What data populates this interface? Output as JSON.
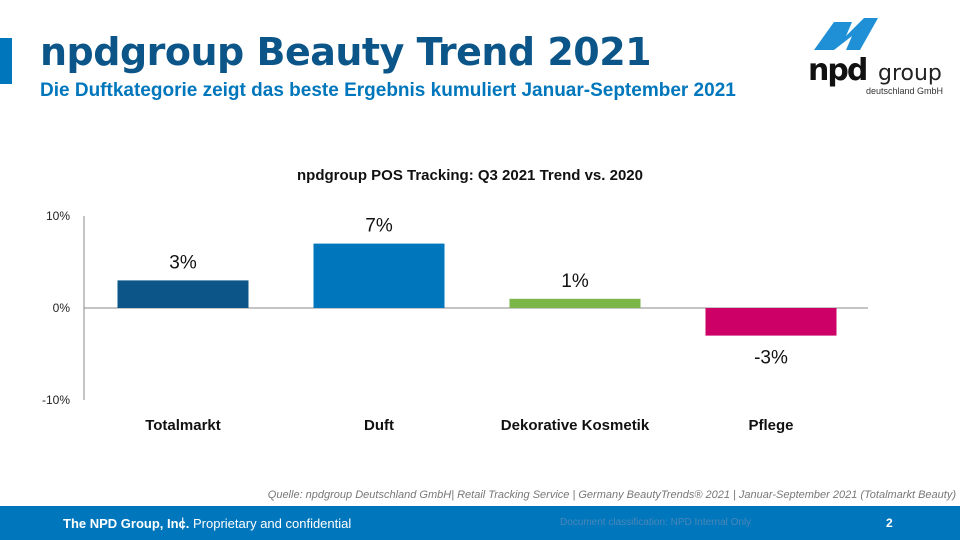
{
  "header": {
    "title": "npdgroup Beauty Trend 2021",
    "subtitle": "Die Duftkategorie zeigt das beste Ergebnis kumuliert Januar-September 2021"
  },
  "logo": {
    "brand": "npd",
    "brand_suffix": "group",
    "sub": "deutschland GmbH"
  },
  "chart_data": {
    "type": "bar",
    "title": "npdgroup POS Tracking: Q3 2021 Trend vs. 2020",
    "categories": [
      "Totalmarkt",
      "Duft",
      "Dekorative Kosmetik",
      "Pflege"
    ],
    "values": [
      3,
      7,
      1,
      -3
    ],
    "data_labels": [
      "3%",
      "7%",
      "1%",
      "-3%"
    ],
    "colors": [
      "#0b5588",
      "#0077bc",
      "#7ab648",
      "#cc0066"
    ],
    "ylim": [
      -10,
      10
    ],
    "yticks": [
      {
        "v": 10,
        "label": "10%"
      },
      {
        "v": 0,
        "label": "0%"
      },
      {
        "v": -10,
        "label": "-10%"
      }
    ],
    "xlabel": "",
    "ylabel": "",
    "grid": false
  },
  "source": "Quelle: npdgroup Deutschland GmbH| Retail  Tracking Service  | Germany BeautyTrends® 2021 | Januar-September  2021 (Totalmarkt Beauty)",
  "footer": {
    "classification": "Document classification: NPD Internal Only",
    "company": "The NPD Group, Inc.",
    "separator": "|",
    "confidential": "Proprietary and confidential",
    "page": "2"
  }
}
